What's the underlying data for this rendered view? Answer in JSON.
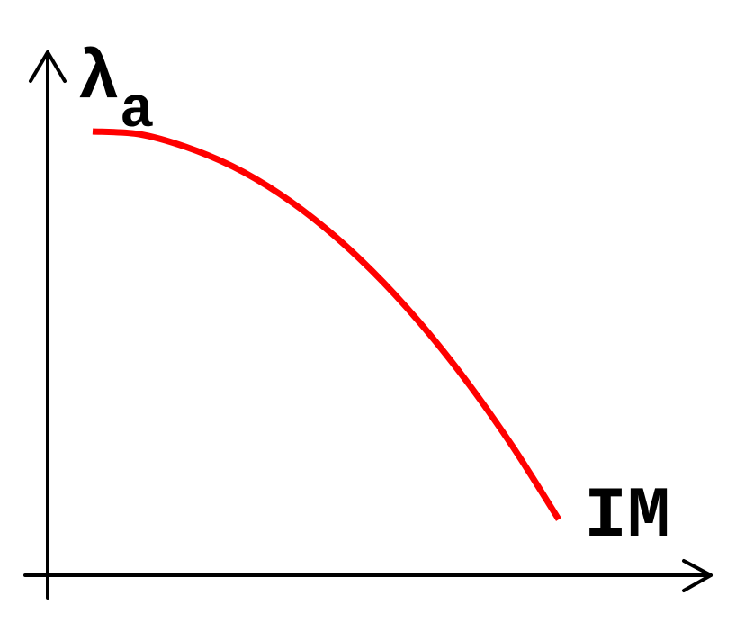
{
  "chart_data": {
    "type": "line",
    "xlabel": "IM",
    "ylabel": {
      "symbol": "λ",
      "subscript": "a"
    },
    "series": [
      {
        "color": "#ff0000",
        "shape": "concave-decreasing",
        "x": [
          0.0,
          0.1,
          0.2,
          0.3,
          0.4,
          0.5,
          0.6,
          0.7,
          0.8,
          0.9,
          1.0
        ],
        "values": [
          1.0,
          0.993,
          0.96,
          0.91,
          0.84,
          0.75,
          0.64,
          0.51,
          0.36,
          0.19,
          0.0
        ]
      }
    ],
    "axis_color": "#000000",
    "grid": false,
    "legend": "none",
    "ticks": "none"
  }
}
